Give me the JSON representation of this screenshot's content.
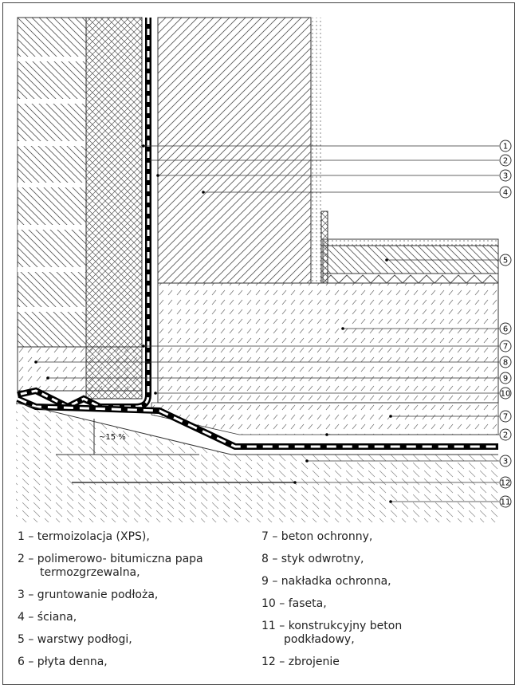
{
  "callouts": [
    "1",
    "2",
    "3",
    "4",
    "5",
    "6",
    "7",
    "8",
    "9",
    "10",
    "7",
    "2",
    "3",
    "12",
    "11"
  ],
  "slope_label": "~15 %",
  "legend_left": [
    "1 – termoizolacja (XPS),",
    "2 – polimerowo- bitumiczna papa termozgrzewalna,",
    "3 – gruntowanie podłoża,",
    "4 – ściana,",
    "5 – warstwy podłogi,",
    "6 – płyta denna,"
  ],
  "legend_right": [
    "7 – beton ochronny,",
    "8 – styk odwrotny,",
    "9 – nakładka ochronna,",
    "10 – faseta,",
    "11 – konstrukcyjny beton podkładowy,",
    "12 – zbrojenie"
  ]
}
